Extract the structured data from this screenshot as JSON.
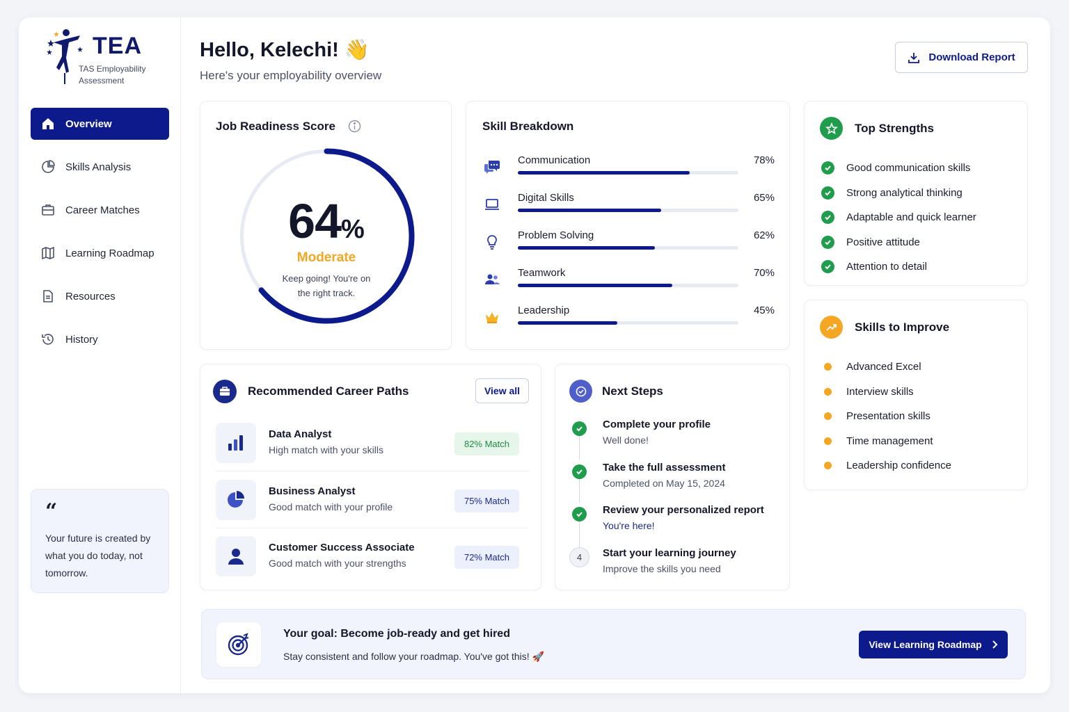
{
  "brand": {
    "name": "TEA",
    "subtitle": "TAS Employability Assessment"
  },
  "sidebar": {
    "items": [
      {
        "label": "Overview",
        "icon": "home-icon",
        "active": true
      },
      {
        "label": "Skills Analysis",
        "icon": "pie-chart-icon"
      },
      {
        "label": "Career Matches",
        "icon": "briefcase-icon"
      },
      {
        "label": "Learning Roadmap",
        "icon": "map-icon"
      },
      {
        "label": "Resources",
        "icon": "document-icon"
      },
      {
        "label": "History",
        "icon": "history-icon"
      }
    ],
    "quote": "Your future is created by what you do today, not tomorrow."
  },
  "header": {
    "greeting": "Hello, Kelechi! 👋",
    "subtitle": "Here's your employability overview",
    "download_label": "Download Report"
  },
  "readiness": {
    "title": "Job Readiness Score",
    "score": "64",
    "unit": "%",
    "score_fraction": 0.64,
    "level": "Moderate",
    "note": "Keep going! You're on the right track."
  },
  "skills": {
    "title": "Skill Breakdown",
    "items": [
      {
        "name": "Communication",
        "value": 78,
        "label": "78%",
        "icon": "chat-icon"
      },
      {
        "name": "Digital Skills",
        "value": 65,
        "label": "65%",
        "icon": "laptop-icon"
      },
      {
        "name": "Problem Solving",
        "value": 62,
        "label": "62%",
        "icon": "lightbulb-icon"
      },
      {
        "name": "Teamwork",
        "value": 70,
        "label": "70%",
        "icon": "team-icon"
      },
      {
        "name": "Leadership",
        "value": 45,
        "label": "45%",
        "icon": "crown-icon"
      }
    ]
  },
  "strengths": {
    "title": "Top Strengths",
    "items": [
      "Good communication skills",
      "Strong analytical thinking",
      "Adaptable and quick learner",
      "Positive attitude",
      "Attention to detail"
    ]
  },
  "improve": {
    "title": "Skills to Improve",
    "items": [
      "Advanced Excel",
      "Interview skills",
      "Presentation skills",
      "Time management",
      "Leadership confidence"
    ]
  },
  "careers": {
    "title": "Recommended Career Paths",
    "view_all": "View all",
    "items": [
      {
        "name": "Data Analyst",
        "desc": "High match with your skills",
        "match": "82% Match",
        "icon": "bar-chart-icon"
      },
      {
        "name": "Business Analyst",
        "desc": "Good match with your profile",
        "match": "75% Match",
        "icon": "pie-chart-icon"
      },
      {
        "name": "Customer Success Associate",
        "desc": "Good match with your strengths",
        "match": "72% Match",
        "icon": "person-icon"
      }
    ]
  },
  "next_steps": {
    "title": "Next Steps",
    "items": [
      {
        "title": "Complete your profile",
        "sub": "Well done!",
        "done": true
      },
      {
        "title": "Take the full assessment",
        "sub": "Completed on May 15, 2024",
        "done": true
      },
      {
        "title": "Review your personalized report",
        "sub": "You're here!",
        "done": true
      },
      {
        "title": "Start your learning journey",
        "sub": "Improve the skills you need",
        "number": "4"
      }
    ]
  },
  "goal": {
    "title": "Your goal: Become job-ready and get hired",
    "sub": "Stay consistent and follow your roadmap. You've got this! 🚀",
    "button": "View Learning Roadmap"
  },
  "colors": {
    "primary": "#0d1a8c",
    "accent": "#f5a623",
    "success": "#1f9d4c"
  }
}
